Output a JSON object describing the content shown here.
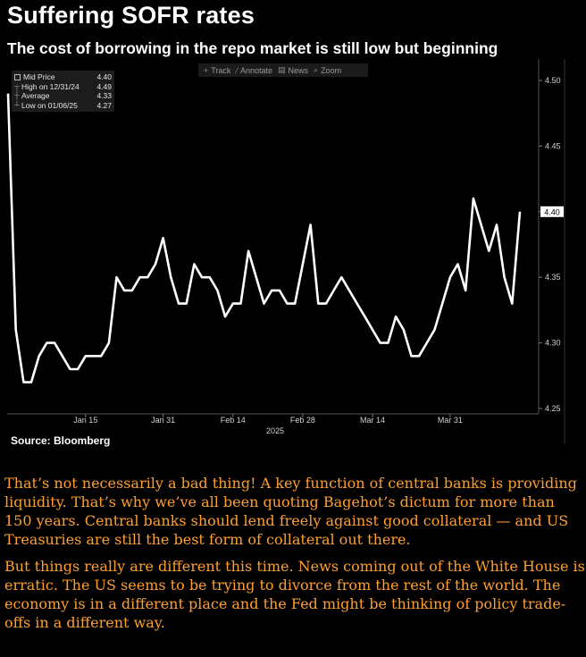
{
  "title": "Suffering SOFR rates",
  "subtitle": "The cost of borrowing in the repo market is still low but beginning",
  "toolbar": {
    "items": [
      {
        "label": "Track",
        "icon": "crosshair-icon"
      },
      {
        "label": "Annotate",
        "icon": "pencil-icon"
      },
      {
        "label": "News",
        "icon": "news-icon"
      },
      {
        "label": "Zoom",
        "icon": "magnifier-icon"
      }
    ]
  },
  "legend": {
    "rows": [
      {
        "label": "Mid Price",
        "value": "4.40"
      },
      {
        "label": "High on 12/31/24",
        "value": "4.49"
      },
      {
        "label": "Average",
        "value": "4.33"
      },
      {
        "label": "Low on 01/06/25",
        "value": "4.27"
      }
    ]
  },
  "source": "Source: Bloomberg",
  "chart_data": {
    "type": "line",
    "series": [
      {
        "name": "Mid Price",
        "values": [
          4.49,
          4.31,
          4.27,
          4.27,
          4.29,
          4.3,
          4.3,
          4.29,
          4.28,
          4.28,
          4.29,
          4.29,
          4.29,
          4.3,
          4.35,
          4.34,
          4.34,
          4.35,
          4.35,
          4.36,
          4.38,
          4.35,
          4.33,
          4.33,
          4.36,
          4.35,
          4.35,
          4.34,
          4.32,
          4.33,
          4.33,
          4.37,
          4.35,
          4.33,
          4.34,
          4.34,
          4.33,
          4.33,
          4.36,
          4.39,
          4.33,
          4.33,
          4.34,
          4.35,
          4.34,
          4.33,
          4.32,
          4.31,
          4.3,
          4.3,
          4.32,
          4.31,
          4.29,
          4.29,
          4.3,
          4.31,
          4.33,
          4.35,
          4.36,
          4.34,
          4.41,
          4.39,
          4.37,
          4.39,
          4.35,
          4.33,
          4.4
        ]
      }
    ],
    "x_tick_labels": [
      "Jan 15",
      "Jan 31",
      "Feb 14",
      "Feb 28",
      "Mar 14",
      "Mar 31"
    ],
    "x_tick_index": [
      10,
      20,
      29,
      38,
      47,
      57
    ],
    "x_label": "2025",
    "y_ticks": [
      "4.50",
      "4.45",
      "4.40",
      "4.35",
      "4.30",
      "4.25"
    ],
    "ylim": [
      4.25,
      4.5
    ],
    "last_value_label": "4.40",
    "grid": false,
    "legend_position": "top-left"
  },
  "article": {
    "paragraphs": [
      "That’s not necessarily a bad thing! A key function of central banks is providing liquidity. That’s why we’ve all been quoting Bagehot’s dictum for more than 150 years. Central banks should lend freely against good collateral — and US Treasuries are still the best form of collateral out there.",
      "But things really are different this time. News coming out of the White House is erratic. The US seems to be trying to divorce from the rest of the world. The economy is in a different place and the Fed might be thinking of policy trade-offs in a different way."
    ]
  },
  "colors": {
    "background": "#000000",
    "line": "#ffffff",
    "article_text": "#ff9f30"
  }
}
